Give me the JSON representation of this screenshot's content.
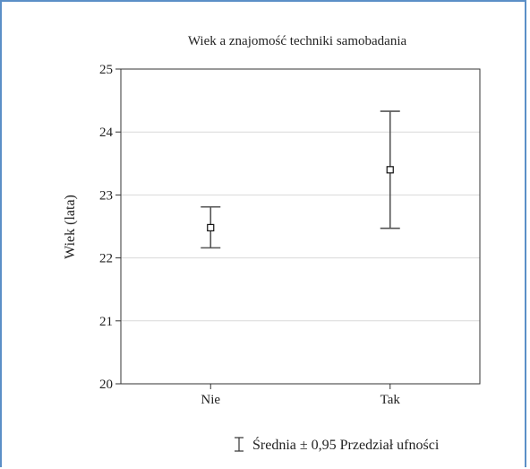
{
  "chart_data": {
    "type": "scatter",
    "title": "Wiek a znajomość techniki samobadania",
    "xlabel": "",
    "ylabel": "Wiek (lata)",
    "categories": [
      "Nie",
      "Tak"
    ],
    "series": [
      {
        "values": [
          22.48,
          23.4
        ],
        "ci_low": [
          22.16,
          22.47
        ],
        "ci_high": [
          22.81,
          24.33
        ]
      }
    ],
    "ylim": [
      20,
      25
    ],
    "yticks": [
      "20",
      "21",
      "22",
      "23",
      "24",
      "25"
    ],
    "grid": true,
    "legend": {
      "label": "Średnia ± 0,95 Przedział ufności",
      "position": "bottom-right"
    }
  },
  "colors": {
    "frame": "#5b8fc7",
    "whisker": "#555555",
    "grid": "#d9d9d9",
    "axis": "#333333"
  }
}
